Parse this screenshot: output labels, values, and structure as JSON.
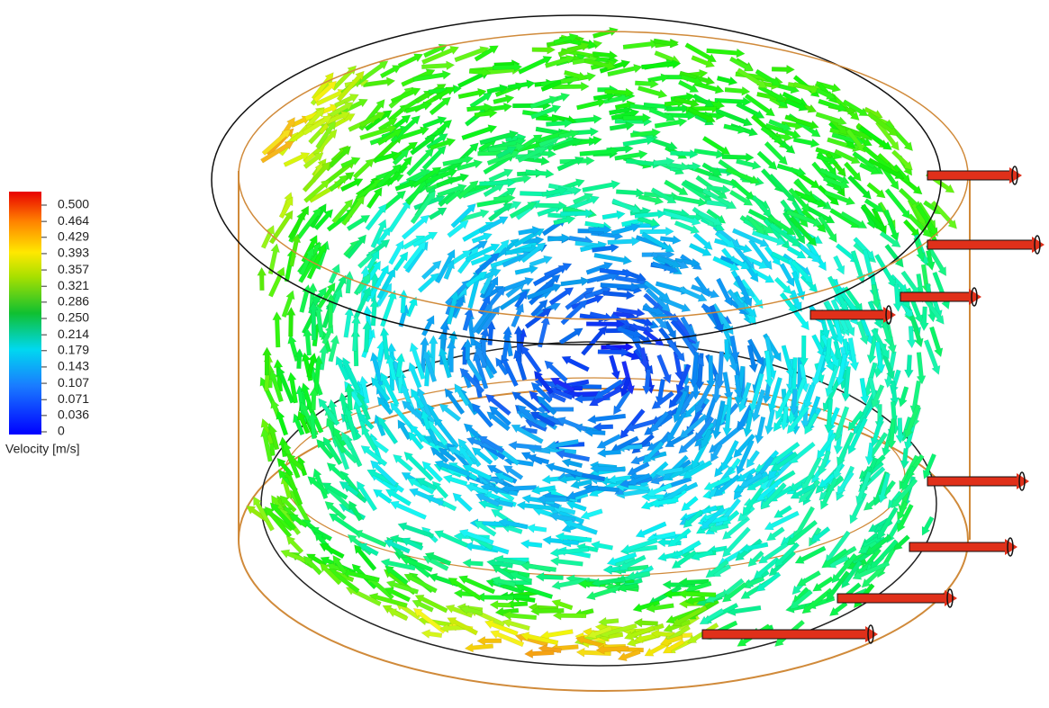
{
  "legend": {
    "title": "Velocity [m/s]",
    "ticks": [
      {
        "value": 0.5,
        "label": "0.500"
      },
      {
        "value": 0.464,
        "label": "0.464"
      },
      {
        "value": 0.429,
        "label": "0.429"
      },
      {
        "value": 0.393,
        "label": "0.393"
      },
      {
        "value": 0.357,
        "label": "0.357"
      },
      {
        "value": 0.321,
        "label": "0.321"
      },
      {
        "value": 0.286,
        "label": "0.286"
      },
      {
        "value": 0.25,
        "label": "0.250"
      },
      {
        "value": 0.214,
        "label": "0.214"
      },
      {
        "value": 0.179,
        "label": "0.179"
      },
      {
        "value": 0.143,
        "label": "0.143"
      },
      {
        "value": 0.107,
        "label": "0.107"
      },
      {
        "value": 0.071,
        "label": "0.071"
      },
      {
        "value": 0.036,
        "label": "0.036"
      },
      0
    ]
  }
}
